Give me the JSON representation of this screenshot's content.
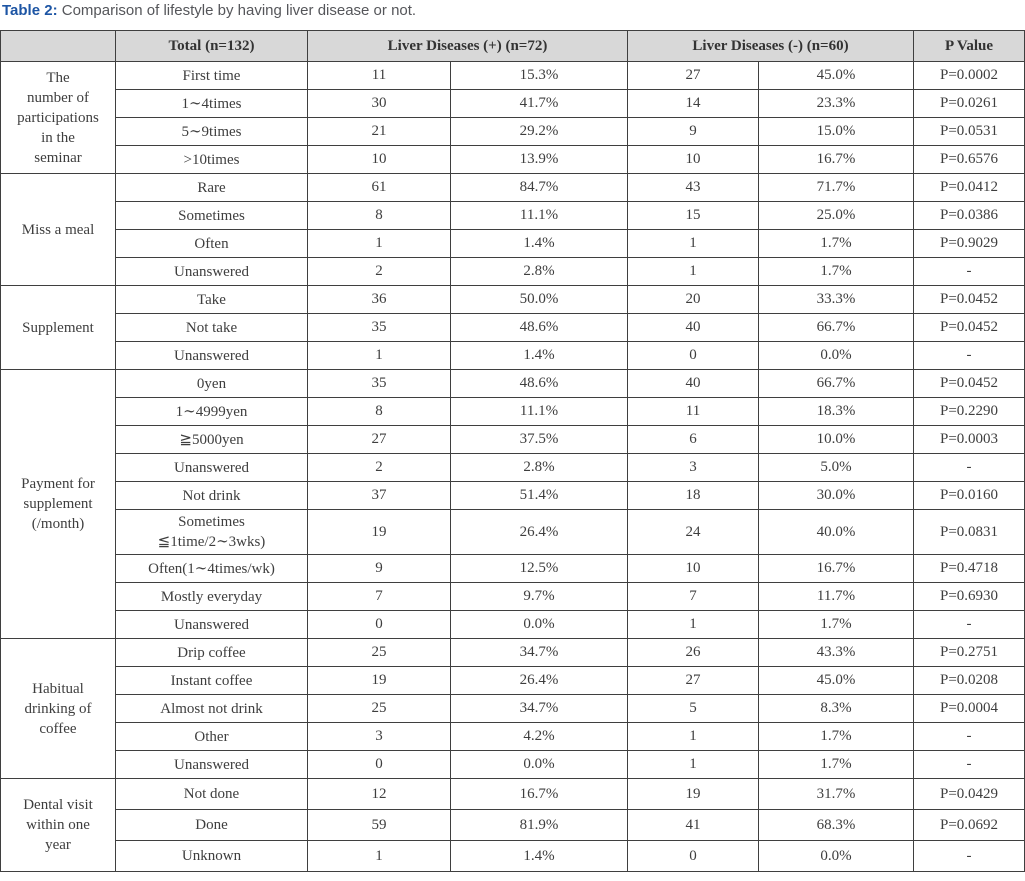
{
  "caption": {
    "label": "Table 2:",
    "text": " Comparison of lifestyle by having liver disease or not."
  },
  "colors": {
    "caption_label_blue": "#1d55a4",
    "caption_text_gray": "#55565a",
    "header_background": "#d8d8d8",
    "border": "#3f3f3f",
    "cell_text": "#3e3e3e"
  },
  "table": {
    "headers": {
      "empty": "",
      "total": "Total (n=132)",
      "liver_pos": "Liver Diseases (+) (n=72)",
      "liver_neg": "Liver Diseases (-) (n=60)",
      "p_value": "P Value"
    },
    "groups": [
      {
        "label": "The\nnumber of\nparticipations\nin the\nseminar",
        "rows": [
          [
            "First time",
            "11",
            "15.3%",
            "27",
            "45.0%",
            "P=0.0002"
          ],
          [
            "1∼4times",
            "30",
            "41.7%",
            "14",
            "23.3%",
            "P=0.0261"
          ],
          [
            "5∼9times",
            "21",
            "29.2%",
            "9",
            "15.0%",
            "P=0.0531"
          ],
          [
            ">10times",
            "10",
            "13.9%",
            "10",
            "16.7%",
            "P=0.6576"
          ]
        ]
      },
      {
        "label": "Miss a meal",
        "rows": [
          [
            "Rare",
            "61",
            "84.7%",
            "43",
            "71.7%",
            "P=0.0412"
          ],
          [
            "Sometimes",
            "8",
            "11.1%",
            "15",
            "25.0%",
            "P=0.0386"
          ],
          [
            "Often",
            "1",
            "1.4%",
            "1",
            "1.7%",
            "P=0.9029"
          ],
          [
            "Unanswered",
            "2",
            "2.8%",
            "1",
            "1.7%",
            "-"
          ]
        ]
      },
      {
        "label": "Supplement",
        "rows": [
          [
            "Take",
            "36",
            "50.0%",
            "20",
            "33.3%",
            "P=0.0452"
          ],
          [
            "Not take",
            "35",
            "48.6%",
            "40",
            "66.7%",
            "P=0.0452"
          ],
          [
            "Unanswered",
            "1",
            "1.4%",
            "0",
            "0.0%",
            "-"
          ]
        ]
      },
      {
        "label": "Payment for\nsupplement\n(/month)",
        "rows": [
          [
            "0yen",
            "35",
            "48.6%",
            "40",
            "66.7%",
            "P=0.0452"
          ],
          [
            "1∼4999yen",
            "8",
            "11.1%",
            "11",
            "18.3%",
            "P=0.2290"
          ],
          [
            "≧5000yen",
            "27",
            "37.5%",
            "6",
            "10.0%",
            "P=0.0003"
          ],
          [
            "Unanswered",
            "2",
            "2.8%",
            "3",
            "5.0%",
            "-"
          ],
          [
            "Not drink",
            "37",
            "51.4%",
            "18",
            "30.0%",
            "P=0.0160"
          ],
          [
            "Sometimes\n≦1time/2∼3wks)",
            "19",
            "26.4%",
            "24",
            "40.0%",
            "P=0.0831"
          ],
          [
            "Often(1∼4times/wk)",
            "9",
            "12.5%",
            "10",
            "16.7%",
            "P=0.4718"
          ],
          [
            "Mostly everyday",
            "7",
            "9.7%",
            "7",
            "11.7%",
            "P=0.6930"
          ],
          [
            "Unanswered",
            "0",
            "0.0%",
            "1",
            "1.7%",
            "-"
          ]
        ]
      },
      {
        "label": "Habitual\ndrinking of\ncoffee",
        "rows": [
          [
            "Drip coffee",
            "25",
            "34.7%",
            "26",
            "43.3%",
            "P=0.2751"
          ],
          [
            "Instant coffee",
            "19",
            "26.4%",
            "27",
            "45.0%",
            "P=0.0208"
          ],
          [
            "Almost not drink",
            "25",
            "34.7%",
            "5",
            "8.3%",
            "P=0.0004"
          ],
          [
            "Other",
            "3",
            "4.2%",
            "1",
            "1.7%",
            "-"
          ],
          [
            "Unanswered",
            "0",
            "0.0%",
            "1",
            "1.7%",
            "-"
          ]
        ]
      },
      {
        "label": "Dental visit\nwithin one\nyear",
        "rows": [
          [
            "Not done",
            "12",
            "16.7%",
            "19",
            "31.7%",
            "P=0.0429"
          ],
          [
            "Done",
            "59",
            "81.9%",
            "41",
            "68.3%",
            "P=0.0692"
          ],
          [
            "Unknown",
            "1",
            "1.4%",
            "0",
            "0.0%",
            "-"
          ]
        ]
      }
    ]
  }
}
